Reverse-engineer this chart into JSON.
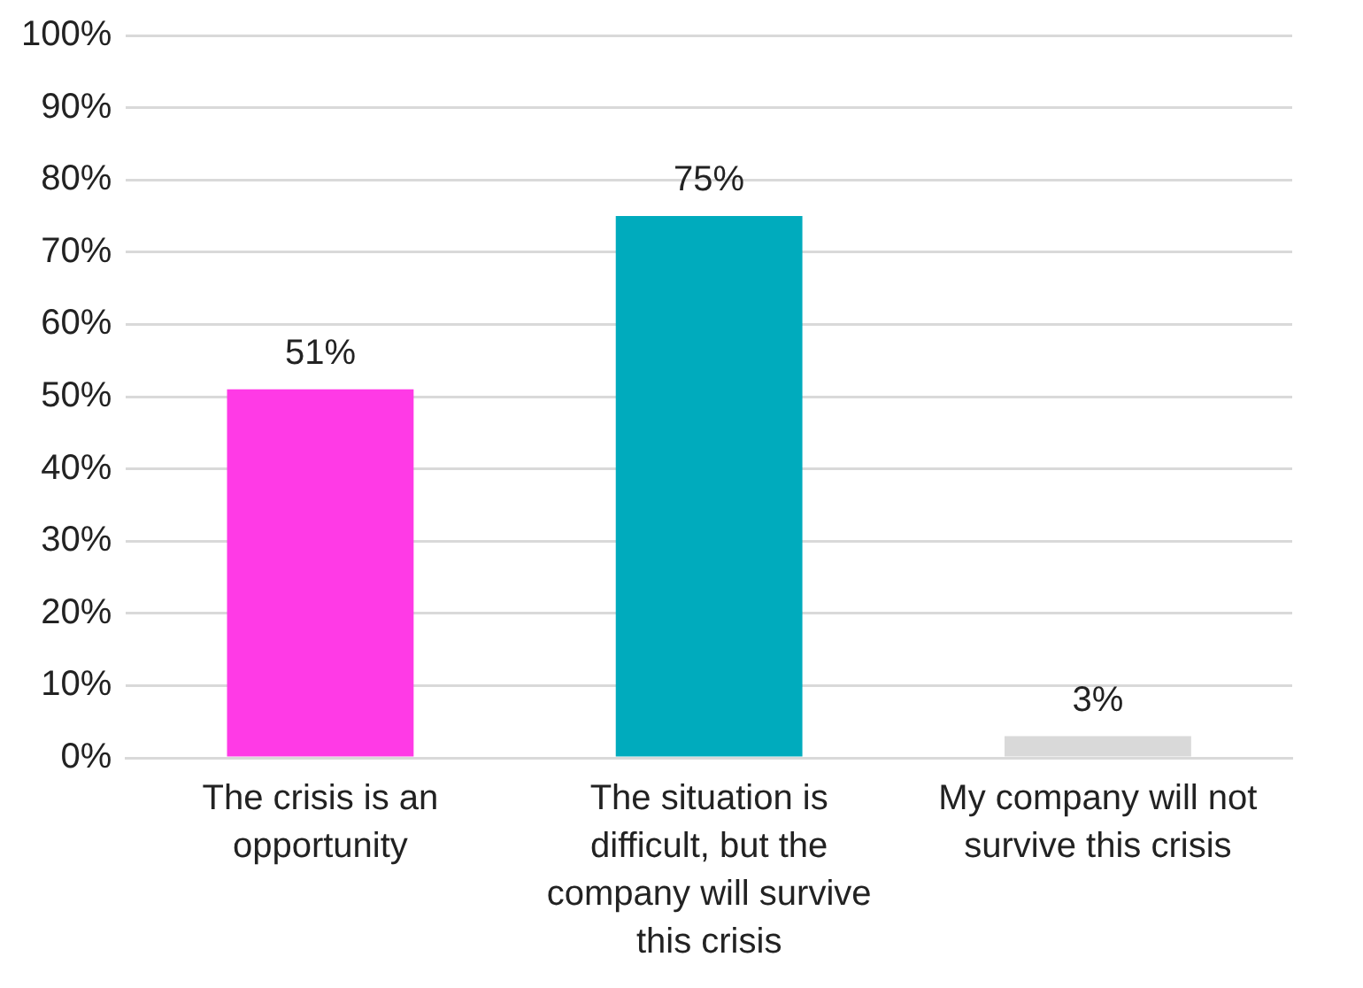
{
  "chart_data": {
    "type": "bar",
    "categories": [
      "The crisis is an opportunity",
      "The situation is difficult, but the company will survive this crisis",
      "My company will not survive this crisis"
    ],
    "values": [
      51,
      75,
      3
    ],
    "colors": [
      "#ff3ae6",
      "#00abbd",
      "#d9d9d9"
    ],
    "value_labels": [
      "51%",
      "75%",
      "3%"
    ],
    "ylim": [
      0,
      100
    ],
    "yticks": [
      {
        "value": 0,
        "label": "0%"
      },
      {
        "value": 10,
        "label": "10%"
      },
      {
        "value": 20,
        "label": "20%"
      },
      {
        "value": 30,
        "label": "30%"
      },
      {
        "value": 40,
        "label": "40%"
      },
      {
        "value": 50,
        "label": "50%"
      },
      {
        "value": 60,
        "label": "60%"
      },
      {
        "value": 70,
        "label": "70%"
      },
      {
        "value": 80,
        "label": "80%"
      },
      {
        "value": 90,
        "label": "90%"
      },
      {
        "value": 100,
        "label": "100%"
      }
    ],
    "grid": "y",
    "legend": false
  }
}
